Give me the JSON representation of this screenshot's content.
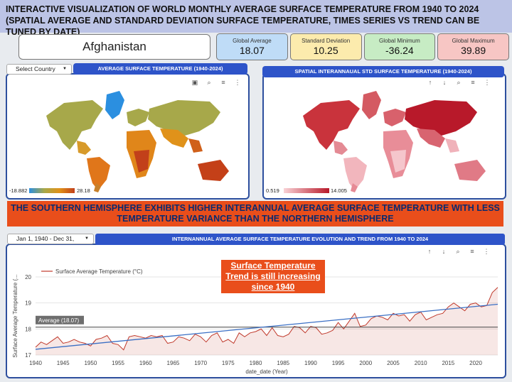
{
  "title": "INTERACTIVE VISUALIZATION OF WORLD MONTHLY AVERAGE SURFACE TEMPERATURE FROM  1940 TO 2024 (SPATIAL AVERAGE AND STANDARD DEVIATION SURFACE TEMPERATURE, TIMES SERIES VS TREND CAN BE TUNED BY DATE)",
  "country": "Afghanistan",
  "kpis": [
    {
      "label": "Global Average",
      "value": "18.07",
      "color": "#bfdcf7"
    },
    {
      "label": "Standard Deviation",
      "value": "10.25",
      "color": "#fcebad"
    },
    {
      "label": "Global Minimum",
      "value": "-36.24",
      "color": "#c7ecc4"
    },
    {
      "label": "Global Maximum",
      "value": "39.89",
      "color": "#f7c6c4"
    }
  ],
  "map1": {
    "select": "Select Country",
    "header": "AVERAGE SURFACE TEMPERATURE (1940-2024)",
    "legend_min": "-18.882",
    "legend_max": "28.18"
  },
  "map2": {
    "header": "SPATIAL INTERANNAUAL STD SURFACE TEMPERATURE (1940-2024)",
    "legend_min": "0.519",
    "legend_max": "14.005"
  },
  "banner": "THE SOUTHERN HEMISPHERE EXHIBITS HIGHER INTERANNUAL AVERAGE SURFACE TEMPERATURE WITH LESS TEMPERATURE VARIANCE THAN  THE NORTHERN HEMISPHERE",
  "timeseries": {
    "date_range": "Jan 1, 1940 - Dec 31,",
    "header": "INTERNANNUAL AVERAGE SURFACE TEMPERATURE EVOLUTION AND TREND FROM 1940 TO 2024",
    "annotation": "Surface Temperature Trend is  still increasing since 1940",
    "average_label": "Average (18.07)"
  },
  "chart_data": {
    "type": "line",
    "xlabel": "date_date (Year)",
    "ylabel": "Surface Average Temperature (...",
    "xlim": [
      1940,
      2024
    ],
    "ylim": [
      17,
      20
    ],
    "yticks": [
      17,
      18,
      19,
      20
    ],
    "xticks": [
      1940,
      1945,
      1950,
      1955,
      1960,
      1965,
      1970,
      1975,
      1980,
      1985,
      1990,
      1995,
      2000,
      2005,
      2010,
      2015,
      2020
    ],
    "average": 18.07,
    "series": [
      {
        "name": "Surface Average Temperature (°C)",
        "color": "#c0392b",
        "x": [
          1940,
          1941,
          1942,
          1943,
          1944,
          1945,
          1946,
          1947,
          1948,
          1949,
          1950,
          1951,
          1952,
          1953,
          1954,
          1955,
          1956,
          1957,
          1958,
          1959,
          1960,
          1961,
          1962,
          1963,
          1964,
          1965,
          1966,
          1967,
          1968,
          1969,
          1970,
          1971,
          1972,
          1973,
          1974,
          1975,
          1976,
          1977,
          1978,
          1979,
          1980,
          1981,
          1982,
          1983,
          1984,
          1985,
          1986,
          1987,
          1988,
          1989,
          1990,
          1991,
          1992,
          1993,
          1994,
          1995,
          1996,
          1997,
          1998,
          1999,
          2000,
          2001,
          2002,
          2003,
          2004,
          2005,
          2006,
          2007,
          2008,
          2009,
          2010,
          2011,
          2012,
          2013,
          2014,
          2015,
          2016,
          2017,
          2018,
          2019,
          2020,
          2021,
          2022,
          2023,
          2024
        ],
        "y": [
          17.3,
          17.5,
          17.4,
          17.55,
          17.7,
          17.45,
          17.5,
          17.6,
          17.5,
          17.45,
          17.35,
          17.6,
          17.65,
          17.75,
          17.45,
          17.4,
          17.2,
          17.7,
          17.75,
          17.7,
          17.65,
          17.75,
          17.7,
          17.75,
          17.45,
          17.5,
          17.7,
          17.65,
          17.55,
          17.8,
          17.7,
          17.5,
          17.75,
          17.85,
          17.5,
          17.6,
          17.45,
          17.85,
          17.7,
          17.85,
          17.9,
          18.0,
          17.75,
          18.05,
          17.75,
          17.7,
          17.8,
          18.1,
          18.05,
          17.85,
          18.1,
          18.05,
          17.8,
          17.85,
          17.95,
          18.25,
          18.0,
          18.3,
          18.6,
          18.1,
          18.15,
          18.4,
          18.5,
          18.45,
          18.35,
          18.6,
          18.5,
          18.55,
          18.3,
          18.55,
          18.65,
          18.35,
          18.45,
          18.55,
          18.6,
          18.85,
          19.0,
          18.85,
          18.7,
          18.95,
          19.0,
          18.85,
          18.9,
          19.4,
          19.6
        ]
      },
      {
        "name": "Trend",
        "color": "#3a6fc4",
        "x": [
          1940,
          2024
        ],
        "y": [
          17.22,
          18.95
        ]
      }
    ]
  }
}
